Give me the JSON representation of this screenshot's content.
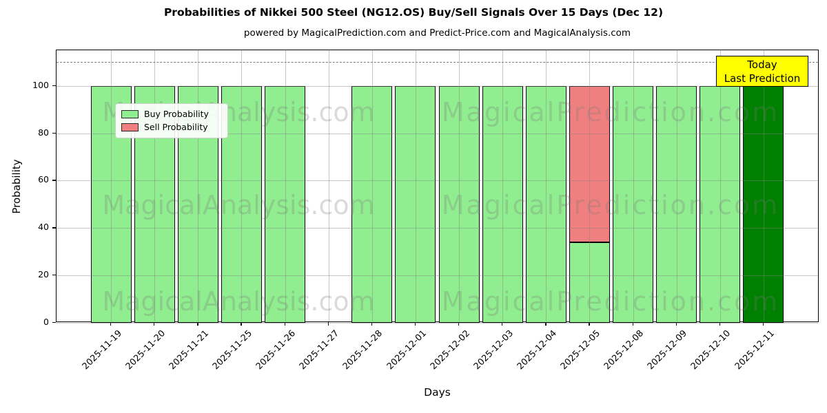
{
  "title": "Probabilities of Nikkei 500 Steel (NG12.OS) Buy/Sell Signals Over 15 Days (Dec 12)",
  "subtitle": "powered by MagicalPrediction.com and Predict-Price.com and MagicalAnalysis.com",
  "axes": {
    "xlabel": "Days",
    "ylabel": "Probability",
    "yticks": [
      0,
      20,
      40,
      60,
      80,
      100
    ]
  },
  "legend": [
    {
      "label": "Buy Probability",
      "color": "#90EE90"
    },
    {
      "label": "Sell Probability",
      "color": "#F08080"
    }
  ],
  "annotation": {
    "line1": "Today",
    "line2": "Last Prediction",
    "bg_color": "#FFFF00"
  },
  "watermarks": {
    "left": "MagicalAnalysis.com",
    "right": "MagicalPrediction.com"
  },
  "colors": {
    "buy": "#90EE90",
    "sell": "#F08080",
    "today_bar": "#008000",
    "annotation_bg": "#FFFF00",
    "grid": "#b0b0b0",
    "dashed_line": "#7a7a7a"
  },
  "chart_data": {
    "type": "bar",
    "stacked": true,
    "categories": [
      "2025-11-19",
      "2025-11-20",
      "2025-11-21",
      "2025-11-25",
      "2025-11-26",
      "2025-11-27",
      "2025-11-28",
      "2025-12-01",
      "2025-12-02",
      "2025-12-03",
      "2025-12-04",
      "2025-12-05",
      "2025-12-08",
      "2025-12-09",
      "2025-12-10",
      "2025-12-11"
    ],
    "series": [
      {
        "name": "Buy Probability",
        "color": "#90EE90",
        "values": [
          100,
          100,
          100,
          100,
          100,
          0,
          100,
          100,
          100,
          100,
          100,
          34,
          100,
          100,
          100,
          100
        ]
      },
      {
        "name": "Sell Probability",
        "color": "#F08080",
        "values": [
          0,
          0,
          0,
          0,
          0,
          0,
          0,
          0,
          0,
          0,
          0,
          66,
          0,
          0,
          0,
          0
        ]
      }
    ],
    "today_index": 15,
    "today_color": "#008000",
    "title": "Probabilities of Nikkei 500 Steel (NG12.OS) Buy/Sell Signals Over 15 Days (Dec 12)",
    "xlabel": "Days",
    "ylabel": "Probability",
    "ylim": [
      0,
      115
    ],
    "yticks": [
      0,
      20,
      40,
      60,
      80,
      100
    ],
    "dashed_line_y": 110,
    "grid": true,
    "legend_position": "upper left"
  }
}
